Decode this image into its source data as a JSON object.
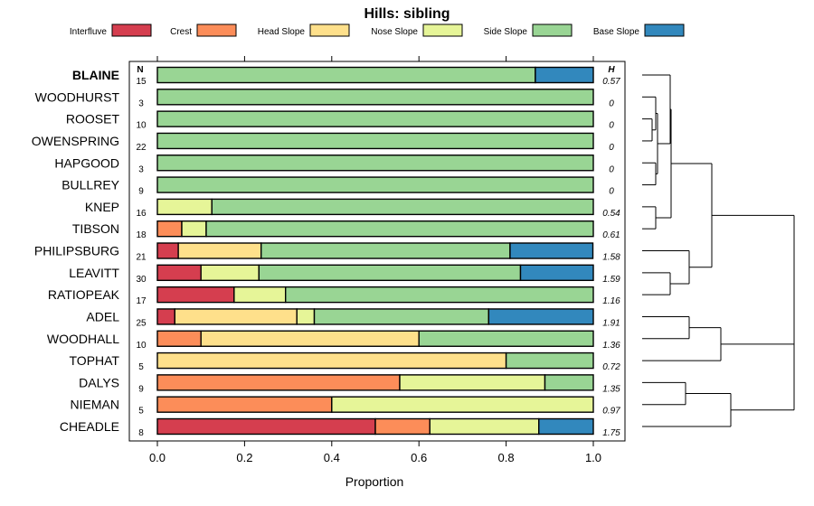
{
  "chart_data": {
    "type": "bar",
    "orientation": "horizontal-stacked",
    "title": "Hills: sibling",
    "xlabel": "Proportion",
    "xlim": [
      0,
      1
    ],
    "x_ticks": [
      "0.0",
      "0.2",
      "0.4",
      "0.6",
      "0.8",
      "1.0"
    ],
    "x_tick_values": [
      0,
      0.2,
      0.4,
      0.6,
      0.8,
      1.0
    ],
    "n_header": "N",
    "h_header": "H",
    "highlight": "BLAINE",
    "legend": [
      {
        "name": "Interfluve",
        "color": "#D53E4F"
      },
      {
        "name": "Crest",
        "color": "#FC8D59"
      },
      {
        "name": "Head Slope",
        "color": "#FEE08B"
      },
      {
        "name": "Nose Slope",
        "color": "#E6F598"
      },
      {
        "name": "Side Slope",
        "color": "#99D594"
      },
      {
        "name": "Base Slope",
        "color": "#3288BD"
      }
    ],
    "categories": [
      "BLAINE",
      "WOODHURST",
      "ROOSET",
      "OWENSPRING",
      "HAPGOOD",
      "BULLREY",
      "KNEP",
      "TIBSON",
      "PHILIPSBURG",
      "LEAVITT",
      "RATIOPEAK",
      "ADEL",
      "WOODHALL",
      "TOPHAT",
      "DALYS",
      "NIEMAN",
      "CHEADLE"
    ],
    "n": [
      "15",
      "3",
      "10",
      "22",
      "3",
      "9",
      "16",
      "18",
      "21",
      "30",
      "17",
      "25",
      "10",
      "5",
      "9",
      "5",
      "8"
    ],
    "h": [
      "0.57",
      "0",
      "0",
      "0",
      "0",
      "0",
      "0.54",
      "0.61",
      "1.58",
      "1.59",
      "1.16",
      "1.91",
      "1.36",
      "0.72",
      "1.35",
      "0.97",
      "1.75"
    ],
    "series": [
      {
        "name": "Interfluve",
        "values": [
          0,
          0,
          0,
          0,
          0,
          0,
          0,
          0,
          0.048,
          0.1,
          0.176,
          0.04,
          0,
          0,
          0,
          0,
          0.5
        ]
      },
      {
        "name": "Crest",
        "values": [
          0,
          0,
          0,
          0,
          0,
          0,
          0,
          0.056,
          0,
          0,
          0,
          0,
          0.1,
          0,
          0.556,
          0.4,
          0.125
        ]
      },
      {
        "name": "Head Slope",
        "values": [
          0,
          0,
          0,
          0,
          0,
          0,
          0,
          0,
          0.19,
          0,
          0,
          0.28,
          0.5,
          0.8,
          0,
          0,
          0
        ]
      },
      {
        "name": "Nose Slope",
        "values": [
          0,
          0,
          0,
          0,
          0,
          0,
          0.125,
          0.056,
          0,
          0.133,
          0.118,
          0.04,
          0,
          0,
          0.333,
          0.6,
          0.25
        ]
      },
      {
        "name": "Side Slope",
        "values": [
          0.867,
          1,
          1,
          1,
          1,
          1,
          0.875,
          0.888,
          0.571,
          0.6,
          0.706,
          0.4,
          0.4,
          0.2,
          0.111,
          0,
          0
        ]
      },
      {
        "name": "Base Slope",
        "values": [
          0.133,
          0,
          0,
          0,
          0,
          0,
          0,
          0,
          0.19,
          0.167,
          0,
          0.24,
          0,
          0,
          0,
          0,
          0.125
        ]
      }
    ]
  }
}
